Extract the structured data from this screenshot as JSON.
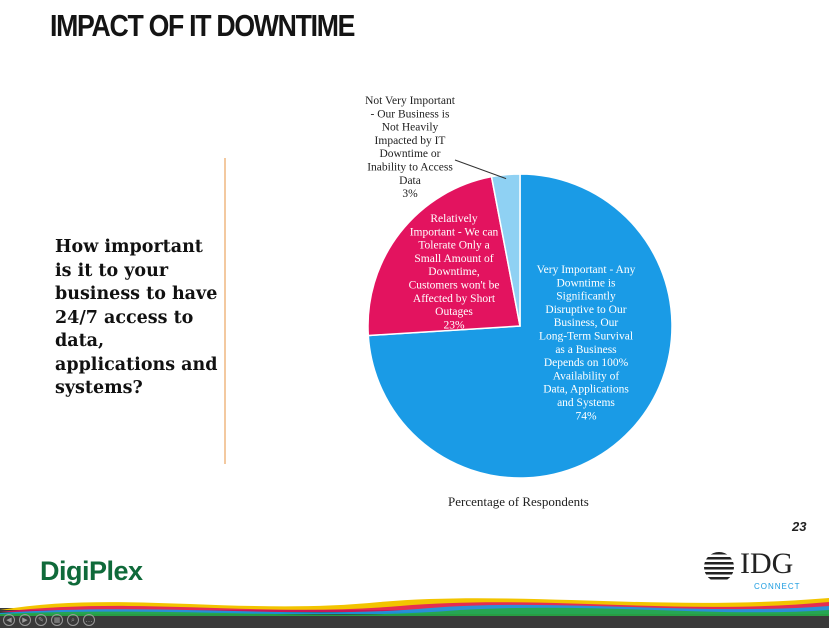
{
  "slide": {
    "title": "IMPACT OF IT DOWNTIME",
    "question": "How important is it to your business to have 24/7 access to data, applications and systems?",
    "page_number": "23"
  },
  "logos": {
    "left": "DigiPlex",
    "right_word": "IDG",
    "right_sub": "CONNECT"
  },
  "colors": {
    "very_important": "#1a9be6",
    "relatively_important": "#e3135f",
    "not_very_important": "#8fd1f3",
    "digiplex_green": "#0f6a3a",
    "idg_blue": "#1a9be0",
    "divider": "#f3c9a0"
  },
  "toolbar_icons": [
    "previous-icon",
    "next-icon",
    "pen-icon",
    "slides-icon",
    "zoom-icon",
    "more-icon"
  ],
  "chart_data": {
    "type": "pie",
    "xlabel": "Percentage of Respondents",
    "slices": [
      {
        "label": "Very Important - Any Downtime is Significantly Disruptive to Our Business, Our Long-Term Survival as a Business Depends on 100% Availability of Data, Applications and Systems",
        "value": 74,
        "value_label": "74%",
        "color": "#1a9be6"
      },
      {
        "label": "Relatively Important - We can Tolerate Only a Small Amount of Downtime, Customers won't be Affected by Short Outages",
        "value": 23,
        "value_label": "23%",
        "color": "#e3135f"
      },
      {
        "label": "Not Very Important - Our Business is Not Heavily Impacted by IT Downtime or Inability to Access Data",
        "value": 3,
        "value_label": "3%",
        "color": "#8fd1f3"
      }
    ]
  }
}
